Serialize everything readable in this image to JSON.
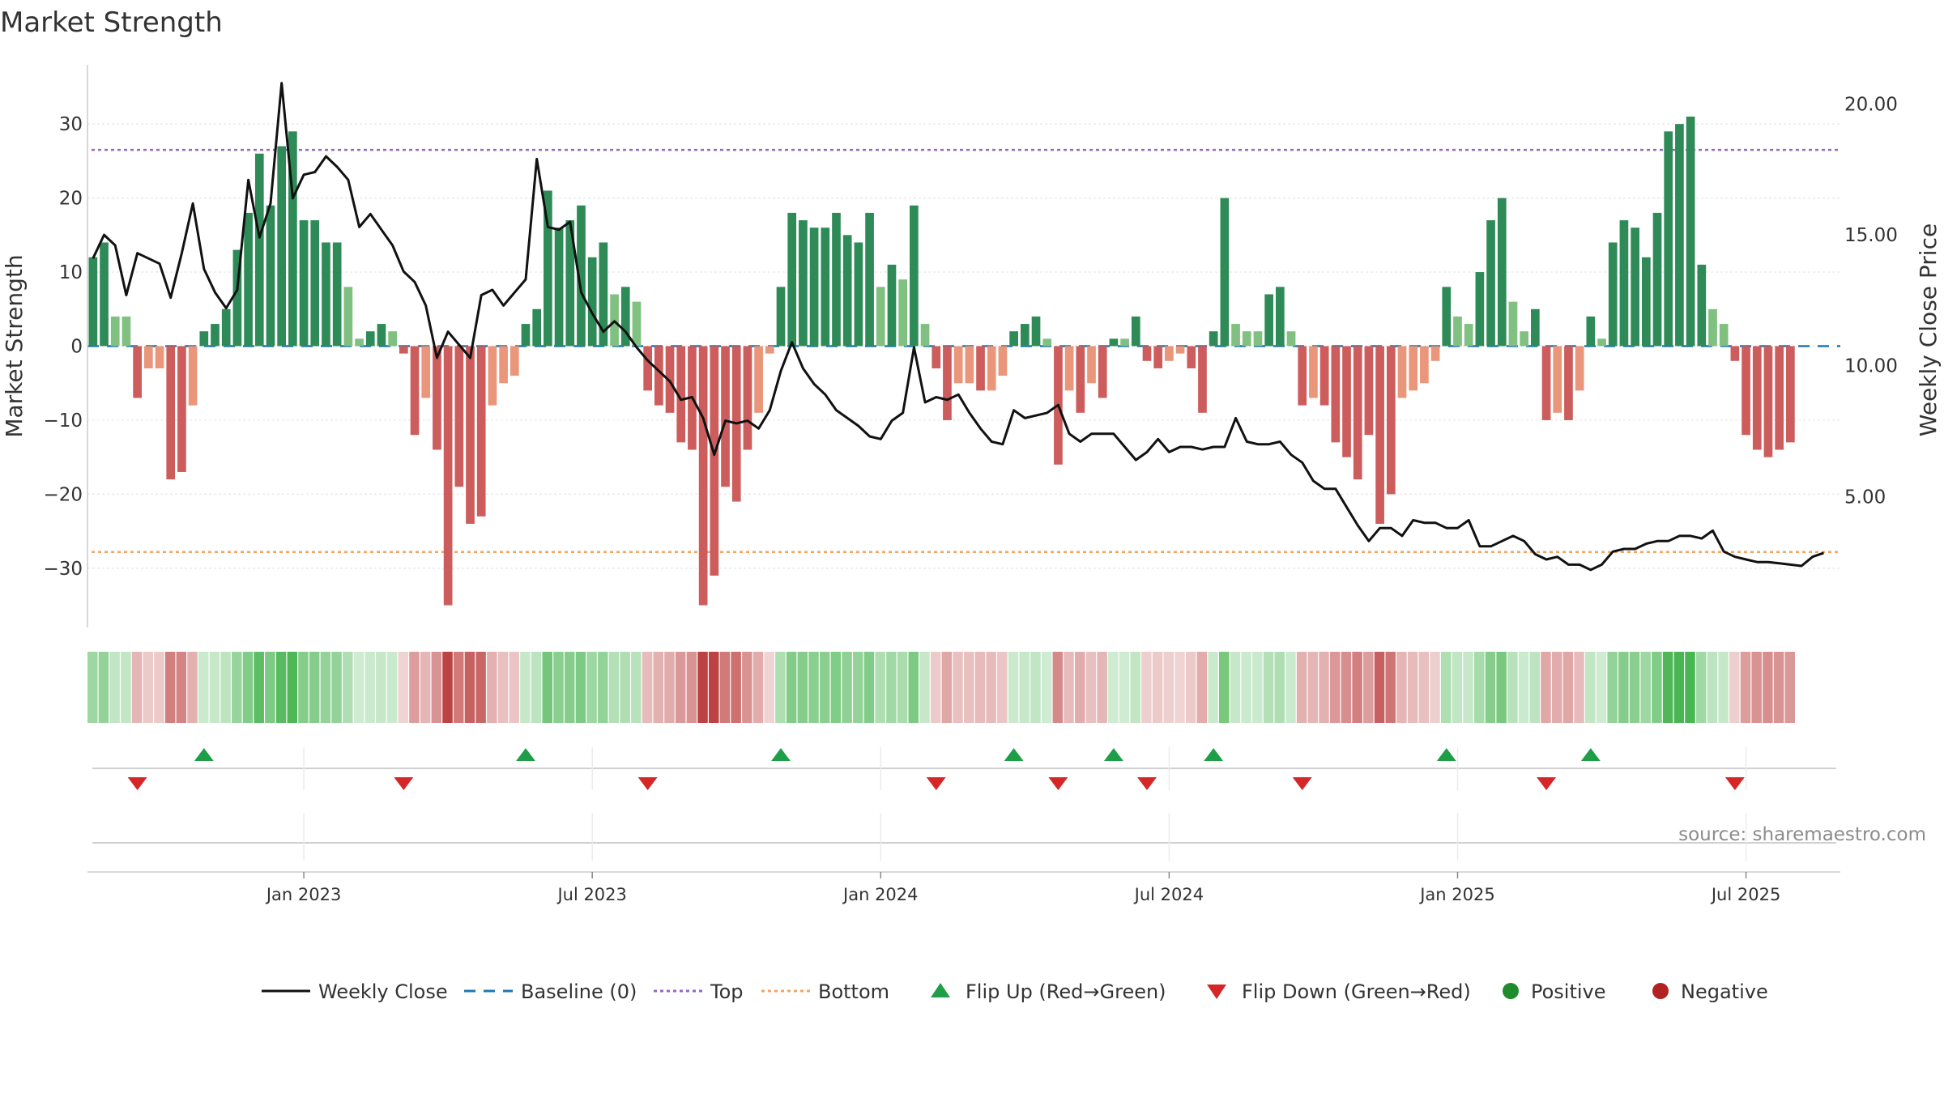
{
  "chart_data": {
    "type": "bar",
    "title": "Market Strength",
    "ylabel": "Market Strength",
    "y2label": "Weekly Close Price",
    "ylim": [
      -38,
      38
    ],
    "y2lim": [
      0,
      21.5
    ],
    "yticks": [
      30,
      20,
      10,
      0,
      -10,
      -20,
      -30
    ],
    "ytick_labels": [
      "30",
      "20",
      "10",
      "0",
      "−10",
      "−20",
      "−30"
    ],
    "y2ticks": [
      20,
      15,
      10,
      5
    ],
    "y2tick_labels": [
      "20.00",
      "15.00",
      "10.00",
      "5.00"
    ],
    "xtick_labels": [
      "Jan 2023",
      "Jul 2023",
      "Jan 2024",
      "Jul 2024",
      "Jan 2025",
      "Jul 2025"
    ],
    "xtick_weeks": [
      19,
      45,
      71,
      97,
      123,
      149
    ],
    "num_weeks": 158,
    "top_line": 26.5,
    "bottom_line": -27.8,
    "source": "source: sharemaestro.com",
    "colors": {
      "strong_green": "#2e8b57",
      "light_green": "#80c080",
      "strong_red": "#cd5c5c",
      "light_red": "#e9967a",
      "close": "#111111",
      "baseline": "#1f77b4",
      "top": "#9467bd",
      "bottom": "#f4a460",
      "flip_up": "#1e9e46",
      "flip_down": "#d62728",
      "positive": "#1e8c2a",
      "negative": "#b22222"
    },
    "strength": [
      12,
      14,
      4,
      4,
      -7,
      -3,
      -3,
      -18,
      -17,
      -8,
      2,
      3,
      5,
      13,
      18,
      26,
      19,
      27,
      29,
      17,
      17,
      14,
      14,
      8,
      1,
      2,
      3,
      2,
      -1,
      -12,
      -7,
      -14,
      -35,
      -19,
      -24,
      -23,
      -8,
      -5,
      -4,
      3,
      5,
      21,
      16,
      17,
      19,
      12,
      14,
      7,
      8,
      6,
      -6,
      -8,
      -9,
      -13,
      -14,
      -35,
      -31,
      -19,
      -21,
      -14,
      -9,
      -1,
      8,
      18,
      17,
      16,
      16,
      18,
      15,
      14,
      18,
      8,
      11,
      9,
      19,
      3,
      -3,
      -10,
      -5,
      -5,
      -6,
      -6,
      -4,
      2,
      3,
      4,
      1,
      -16,
      -6,
      -9,
      -5,
      -7,
      1,
      1,
      4,
      -2,
      -3,
      -2,
      -1,
      -3,
      -9,
      2,
      20,
      3,
      2,
      2,
      7,
      8,
      2,
      -8,
      -7,
      -8,
      -13,
      -15,
      -18,
      -12,
      -24,
      -20,
      -7,
      -6,
      -5,
      -2,
      8,
      4,
      3,
      10,
      17,
      20,
      6,
      2,
      5,
      -10,
      -9,
      -10,
      -6,
      4,
      1,
      14,
      17,
      16,
      12,
      18,
      29,
      30,
      31,
      11,
      5,
      3,
      -2,
      -12,
      -14,
      -15,
      -14,
      -13
    ],
    "close": [
      14.1,
      15.0,
      14.6,
      12.7,
      14.3,
      14.1,
      13.9,
      12.6,
      14.3,
      16.2,
      13.7,
      12.8,
      12.2,
      12.9,
      17.1,
      14.9,
      16.2,
      20.8,
      16.4,
      17.3,
      17.4,
      18.0,
      17.6,
      17.1,
      15.3,
      15.8,
      15.2,
      14.6,
      13.6,
      13.2,
      12.3,
      10.3,
      11.3,
      10.8,
      10.3,
      12.7,
      12.9,
      12.3,
      12.8,
      13.3,
      17.9,
      15.3,
      15.2,
      15.5,
      12.8,
      12.0,
      11.3,
      11.7,
      11.3,
      10.7,
      10.2,
      9.8,
      9.4,
      8.7,
      8.8,
      8.0,
      6.6,
      7.9,
      7.8,
      7.9,
      7.6,
      8.3,
      9.8,
      10.9,
      9.9,
      9.3,
      8.9,
      8.3,
      8.0,
      7.7,
      7.3,
      7.2,
      7.9,
      8.2,
      10.7,
      8.6,
      8.8,
      8.7,
      8.9,
      8.2,
      7.6,
      7.1,
      7.0,
      8.3,
      8.0,
      8.1,
      8.2,
      8.5,
      7.4,
      7.1,
      7.4,
      7.4,
      7.4,
      6.9,
      6.4,
      6.7,
      7.2,
      6.7,
      6.9,
      6.9,
      6.8,
      6.9,
      6.9,
      8.0,
      7.1,
      7.0,
      7.0,
      7.1,
      6.6,
      6.3,
      5.6,
      5.3,
      5.3,
      4.6,
      3.9,
      3.3,
      3.8,
      3.8,
      3.5,
      4.1,
      4.0,
      4.0,
      3.8,
      3.8,
      4.1,
      3.1,
      3.1,
      3.3,
      3.5,
      3.3,
      2.8,
      2.6,
      2.7,
      2.4,
      2.4,
      2.2,
      2.4,
      2.9,
      3.0,
      3.0,
      3.2,
      3.3,
      3.3,
      3.5,
      3.5,
      3.4,
      3.7,
      2.9,
      2.7,
      2.6,
      2.5,
      2.5,
      2.45,
      2.4,
      2.35,
      2.7,
      2.85
    ]
  },
  "legend": [
    {
      "type": "line-solid",
      "label": "Weekly Close"
    },
    {
      "type": "line-dashed",
      "label": "Baseline (0)"
    },
    {
      "type": "line-dotted-top",
      "label": "Top"
    },
    {
      "type": "line-dotted-bottom",
      "label": "Bottom"
    },
    {
      "type": "triangle-up",
      "label": "Flip Up (Red→Green)"
    },
    {
      "type": "triangle-down",
      "label": "Flip Down (Green→Red)"
    },
    {
      "type": "dot-positive",
      "label": "Positive"
    },
    {
      "type": "dot-negative",
      "label": "Negative"
    }
  ]
}
